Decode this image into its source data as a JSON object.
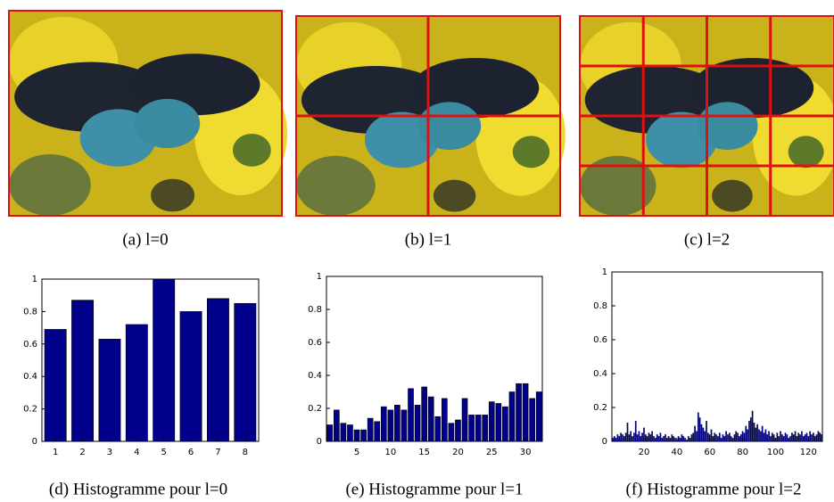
{
  "figures": [
    {
      "caption": "(a) l=0"
    },
    {
      "caption": "(b) l=1"
    },
    {
      "caption": "(c) l=2"
    }
  ],
  "chart_data": [
    {
      "type": "bar",
      "caption": "(d) Histogramme pour l=0",
      "color": "#00008b",
      "x": [
        1,
        2,
        3,
        4,
        5,
        6,
        7,
        8
      ],
      "values": [
        0.69,
        0.87,
        0.63,
        0.72,
        1.0,
        0.8,
        0.88,
        0.85
      ],
      "xlim": [
        0.5,
        8.5
      ],
      "xticks": [
        1,
        2,
        3,
        4,
        5,
        6,
        7,
        8
      ],
      "ylim": [
        0,
        1
      ],
      "yticks": [
        0,
        0.2,
        0.4,
        0.6,
        0.8,
        1
      ]
    },
    {
      "type": "bar",
      "caption": "(e) Histogramme pour l=1",
      "color": "#00008b",
      "x": [
        1,
        2,
        3,
        4,
        5,
        6,
        7,
        8,
        9,
        10,
        11,
        12,
        13,
        14,
        15,
        16,
        17,
        18,
        19,
        20,
        21,
        22,
        23,
        24,
        25,
        26,
        27,
        28,
        29,
        30,
        31,
        32
      ],
      "values": [
        0.1,
        0.19,
        0.11,
        0.1,
        0.07,
        0.07,
        0.14,
        0.12,
        0.21,
        0.19,
        0.22,
        0.19,
        0.32,
        0.22,
        0.33,
        0.27,
        0.15,
        0.26,
        0.11,
        0.13,
        0.26,
        0.16,
        0.16,
        0.16,
        0.24,
        0.23,
        0.21,
        0.3,
        0.35,
        0.35,
        0.26,
        0.3
      ],
      "xlim": [
        0.5,
        32.5
      ],
      "xticks": [
        5,
        10,
        15,
        20,
        25,
        30
      ],
      "ylim": [
        0,
        1
      ],
      "yticks": [
        0,
        0.2,
        0.4,
        0.6,
        0.8,
        1
      ]
    },
    {
      "type": "bar",
      "caption": "(f) Histogramme pour l=2",
      "color": "#00008b",
      "x": [
        1,
        2,
        3,
        4,
        5,
        6,
        7,
        8,
        9,
        10,
        11,
        12,
        13,
        14,
        15,
        16,
        17,
        18,
        19,
        20,
        21,
        22,
        23,
        24,
        25,
        26,
        27,
        28,
        29,
        30,
        31,
        32,
        33,
        34,
        35,
        36,
        37,
        38,
        39,
        40,
        41,
        42,
        43,
        44,
        45,
        46,
        47,
        48,
        49,
        50,
        51,
        52,
        53,
        54,
        55,
        56,
        57,
        58,
        59,
        60,
        61,
        62,
        63,
        64,
        65,
        66,
        67,
        68,
        69,
        70,
        71,
        72,
        73,
        74,
        75,
        76,
        77,
        78,
        79,
        80,
        81,
        82,
        83,
        84,
        85,
        86,
        87,
        88,
        89,
        90,
        91,
        92,
        93,
        94,
        95,
        96,
        97,
        98,
        99,
        100,
        101,
        102,
        103,
        104,
        105,
        106,
        107,
        108,
        109,
        110,
        111,
        112,
        113,
        114,
        115,
        116,
        117,
        118,
        119,
        120,
        121,
        122,
        123,
        124,
        125,
        126,
        127,
        128
      ],
      "values": [
        0.02,
        0.03,
        0.02,
        0.04,
        0.03,
        0.05,
        0.04,
        0.03,
        0.05,
        0.11,
        0.04,
        0.06,
        0.03,
        0.05,
        0.12,
        0.04,
        0.06,
        0.03,
        0.05,
        0.08,
        0.04,
        0.03,
        0.05,
        0.04,
        0.06,
        0.03,
        0.02,
        0.04,
        0.03,
        0.05,
        0.02,
        0.03,
        0.04,
        0.02,
        0.03,
        0.02,
        0.04,
        0.03,
        0.02,
        0.01,
        0.03,
        0.02,
        0.04,
        0.03,
        0.02,
        0.01,
        0.03,
        0.02,
        0.04,
        0.05,
        0.09,
        0.06,
        0.17,
        0.14,
        0.1,
        0.08,
        0.06,
        0.12,
        0.05,
        0.04,
        0.07,
        0.03,
        0.05,
        0.04,
        0.03,
        0.05,
        0.02,
        0.04,
        0.03,
        0.06,
        0.04,
        0.05,
        0.03,
        0.02,
        0.04,
        0.06,
        0.05,
        0.03,
        0.04,
        0.06,
        0.05,
        0.09,
        0.07,
        0.12,
        0.14,
        0.18,
        0.11,
        0.08,
        0.1,
        0.07,
        0.06,
        0.09,
        0.05,
        0.07,
        0.04,
        0.06,
        0.03,
        0.05,
        0.04,
        0.02,
        0.05,
        0.03,
        0.06,
        0.04,
        0.03,
        0.05,
        0.04,
        0.02,
        0.03,
        0.05,
        0.04,
        0.06,
        0.03,
        0.05,
        0.04,
        0.06,
        0.03,
        0.04,
        0.05,
        0.03,
        0.06,
        0.04,
        0.05,
        0.03,
        0.04,
        0.06,
        0.05,
        0.04
      ],
      "xlim": [
        0.5,
        128.5
      ],
      "xticks": [
        20,
        40,
        60,
        80,
        100,
        120
      ],
      "ylim": [
        0,
        1
      ],
      "yticks": [
        0,
        0.2,
        0.4,
        0.6,
        0.8,
        1
      ]
    }
  ]
}
